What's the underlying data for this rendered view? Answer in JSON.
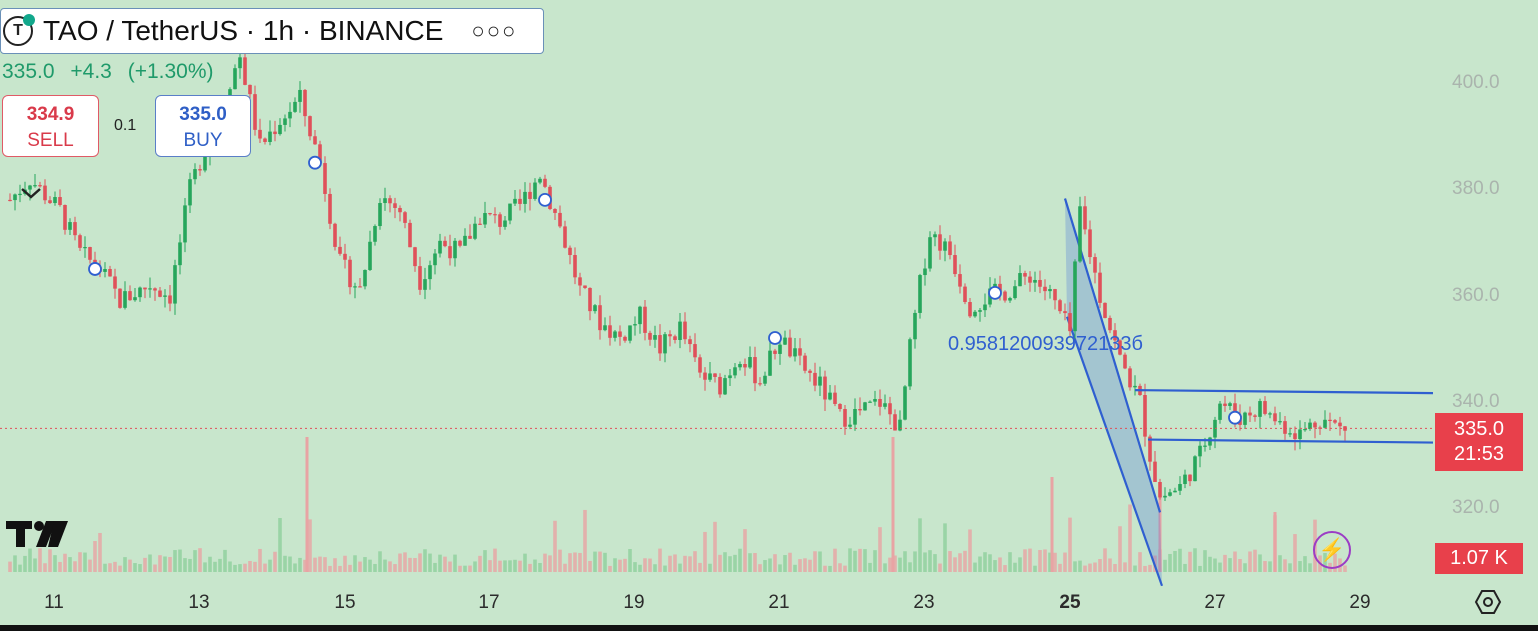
{
  "header": {
    "title": "TAO / TetherUS · 1h · BINANCE",
    "logo_letter": "T",
    "menu_icon": "more-horizontal-icon"
  },
  "quote": {
    "price": "335.0",
    "change": "+4.3",
    "change_pct": "(+1.30%)"
  },
  "trade": {
    "sell_price": "334.9",
    "sell_label": "SELL",
    "spread": "0.1",
    "buy_price": "335.0",
    "buy_label": "BUY"
  },
  "price_axis": {
    "labels": [
      "400.0",
      "380.0",
      "360.0",
      "340.0",
      "320.0"
    ],
    "current_price": "335.0",
    "countdown": "21:53",
    "volume": "1.07 K"
  },
  "time_axis": {
    "labels": [
      "11",
      "13",
      "15",
      "17",
      "19",
      "21",
      "23",
      "25",
      "27",
      "29"
    ]
  },
  "annotation": {
    "fib_text": "0.958120093972133б"
  },
  "colors": {
    "background": "#c8e6cc",
    "up": "#26a65b",
    "down": "#e0505a",
    "drawing": "#2f5fd0",
    "price_badge": "#e8404b"
  },
  "chart_data": {
    "type": "candlestick",
    "symbol": "TAO / TetherUS",
    "interval": "1h",
    "exchange": "BINANCE",
    "ylim": [
      315,
      410
    ],
    "x_ticks": [
      "11",
      "13",
      "15",
      "17",
      "19",
      "21",
      "23",
      "25",
      "27",
      "29"
    ],
    "y_ticks": [
      400,
      380,
      360,
      340,
      320
    ],
    "last_price": 335.0,
    "path": [
      {
        "t": 0,
        "p": 378
      },
      {
        "t": 2,
        "p": 382
      },
      {
        "t": 5,
        "p": 376
      },
      {
        "t": 7,
        "p": 368
      },
      {
        "t": 9,
        "p": 365
      },
      {
        "t": 11,
        "p": 359
      },
      {
        "t": 14,
        "p": 362
      },
      {
        "t": 16,
        "p": 360
      },
      {
        "t": 18,
        "p": 380
      },
      {
        "t": 21,
        "p": 396
      },
      {
        "t": 23,
        "p": 405
      },
      {
        "t": 25,
        "p": 388
      },
      {
        "t": 27,
        "p": 393
      },
      {
        "t": 29,
        "p": 397
      },
      {
        "t": 31,
        "p": 385
      },
      {
        "t": 33,
        "p": 366
      },
      {
        "t": 35,
        "p": 361
      },
      {
        "t": 37,
        "p": 379
      },
      {
        "t": 39,
        "p": 376
      },
      {
        "t": 41,
        "p": 363
      },
      {
        "t": 43,
        "p": 370
      },
      {
        "t": 45,
        "p": 368
      },
      {
        "t": 47,
        "p": 375
      },
      {
        "t": 49,
        "p": 374
      },
      {
        "t": 51,
        "p": 377
      },
      {
        "t": 53,
        "p": 383
      },
      {
        "t": 55,
        "p": 373
      },
      {
        "t": 57,
        "p": 361
      },
      {
        "t": 59,
        "p": 355
      },
      {
        "t": 61,
        "p": 352
      },
      {
        "t": 63,
        "p": 356
      },
      {
        "t": 65,
        "p": 350
      },
      {
        "t": 67,
        "p": 354
      },
      {
        "t": 69,
        "p": 345
      },
      {
        "t": 71,
        "p": 343
      },
      {
        "t": 73,
        "p": 349
      },
      {
        "t": 75,
        "p": 344
      },
      {
        "t": 77,
        "p": 352
      },
      {
        "t": 79,
        "p": 347
      },
      {
        "t": 81,
        "p": 343
      },
      {
        "t": 83,
        "p": 337
      },
      {
        "t": 85,
        "p": 338
      },
      {
        "t": 87,
        "p": 340
      },
      {
        "t": 89,
        "p": 335
      },
      {
        "t": 90,
        "p": 350
      },
      {
        "t": 91,
        "p": 362
      },
      {
        "t": 92,
        "p": 372
      },
      {
        "t": 94,
        "p": 368
      },
      {
        "t": 96,
        "p": 358
      },
      {
        "t": 98,
        "p": 360
      },
      {
        "t": 100,
        "p": 361
      },
      {
        "t": 102,
        "p": 364
      },
      {
        "t": 104,
        "p": 360
      },
      {
        "t": 106,
        "p": 353
      },
      {
        "t": 107,
        "p": 376
      },
      {
        "t": 109,
        "p": 360
      },
      {
        "t": 111,
        "p": 348
      },
      {
        "t": 113,
        "p": 340
      },
      {
        "t": 114,
        "p": 330
      },
      {
        "t": 115,
        "p": 322
      },
      {
        "t": 117,
        "p": 324
      },
      {
        "t": 119,
        "p": 330
      },
      {
        "t": 121,
        "p": 340
      },
      {
        "t": 123,
        "p": 337
      },
      {
        "t": 125,
        "p": 339
      },
      {
        "t": 127,
        "p": 336
      },
      {
        "t": 129,
        "p": 334
      },
      {
        "t": 131,
        "p": 337
      },
      {
        "t": 133,
        "p": 335
      }
    ],
    "markers_at_t": [
      9,
      31,
      54,
      77,
      99,
      123
    ],
    "drawings": {
      "descending_channel": {
        "upper": [
          [
            376,
            107
          ],
          [
            322,
            117
          ]
        ],
        "lower": [
          [
            356,
            107
          ],
          [
            311,
            116
          ]
        ]
      },
      "horizontal_channel": {
        "top": [
          [
            342,
            114
          ],
          [
            342,
            145
          ]
        ],
        "bottom": [
          [
            331,
            116
          ],
          [
            331,
            145
          ]
        ]
      }
    }
  }
}
